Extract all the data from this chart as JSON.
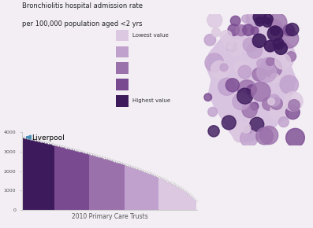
{
  "title_line1": "Bronchiolitis hospital admission rate",
  "title_line2": "per 100,000 population aged <2 yrs",
  "xlabel": "2010 Primary Care Trusts",
  "legend_labels": [
    "Lowest value",
    "",
    "",
    "",
    "Highest value"
  ],
  "legend_colors": [
    "#dcc8e0",
    "#c0a0cc",
    "#9b71ab",
    "#7a4a91",
    "#3d1a5c"
  ],
  "bar_color_segments": [
    "#3d1a5c",
    "#7a4a91",
    "#9b71ab",
    "#c0a0cc",
    "#dcc8e0"
  ],
  "n_bars": 152,
  "y_max": 4000,
  "y_ticks": [
    0,
    1000,
    2000,
    3000,
    4000
  ],
  "liverpool_label": "Liverpool",
  "liverpool_value": 3700,
  "arrow_color": "#4a90b8",
  "background_color": "#f2eef4",
  "fig_bg": "#f2eef4",
  "map_base_color": "#c0a0cc",
  "map_circle_colors": [
    "#dcc8e0",
    "#c0a0cc",
    "#9b71ab",
    "#7a4a91",
    "#3d1a5c"
  ],
  "ytick_labels": [
    "0",
    "1000",
    "2000",
    "3000",
    "4000"
  ]
}
